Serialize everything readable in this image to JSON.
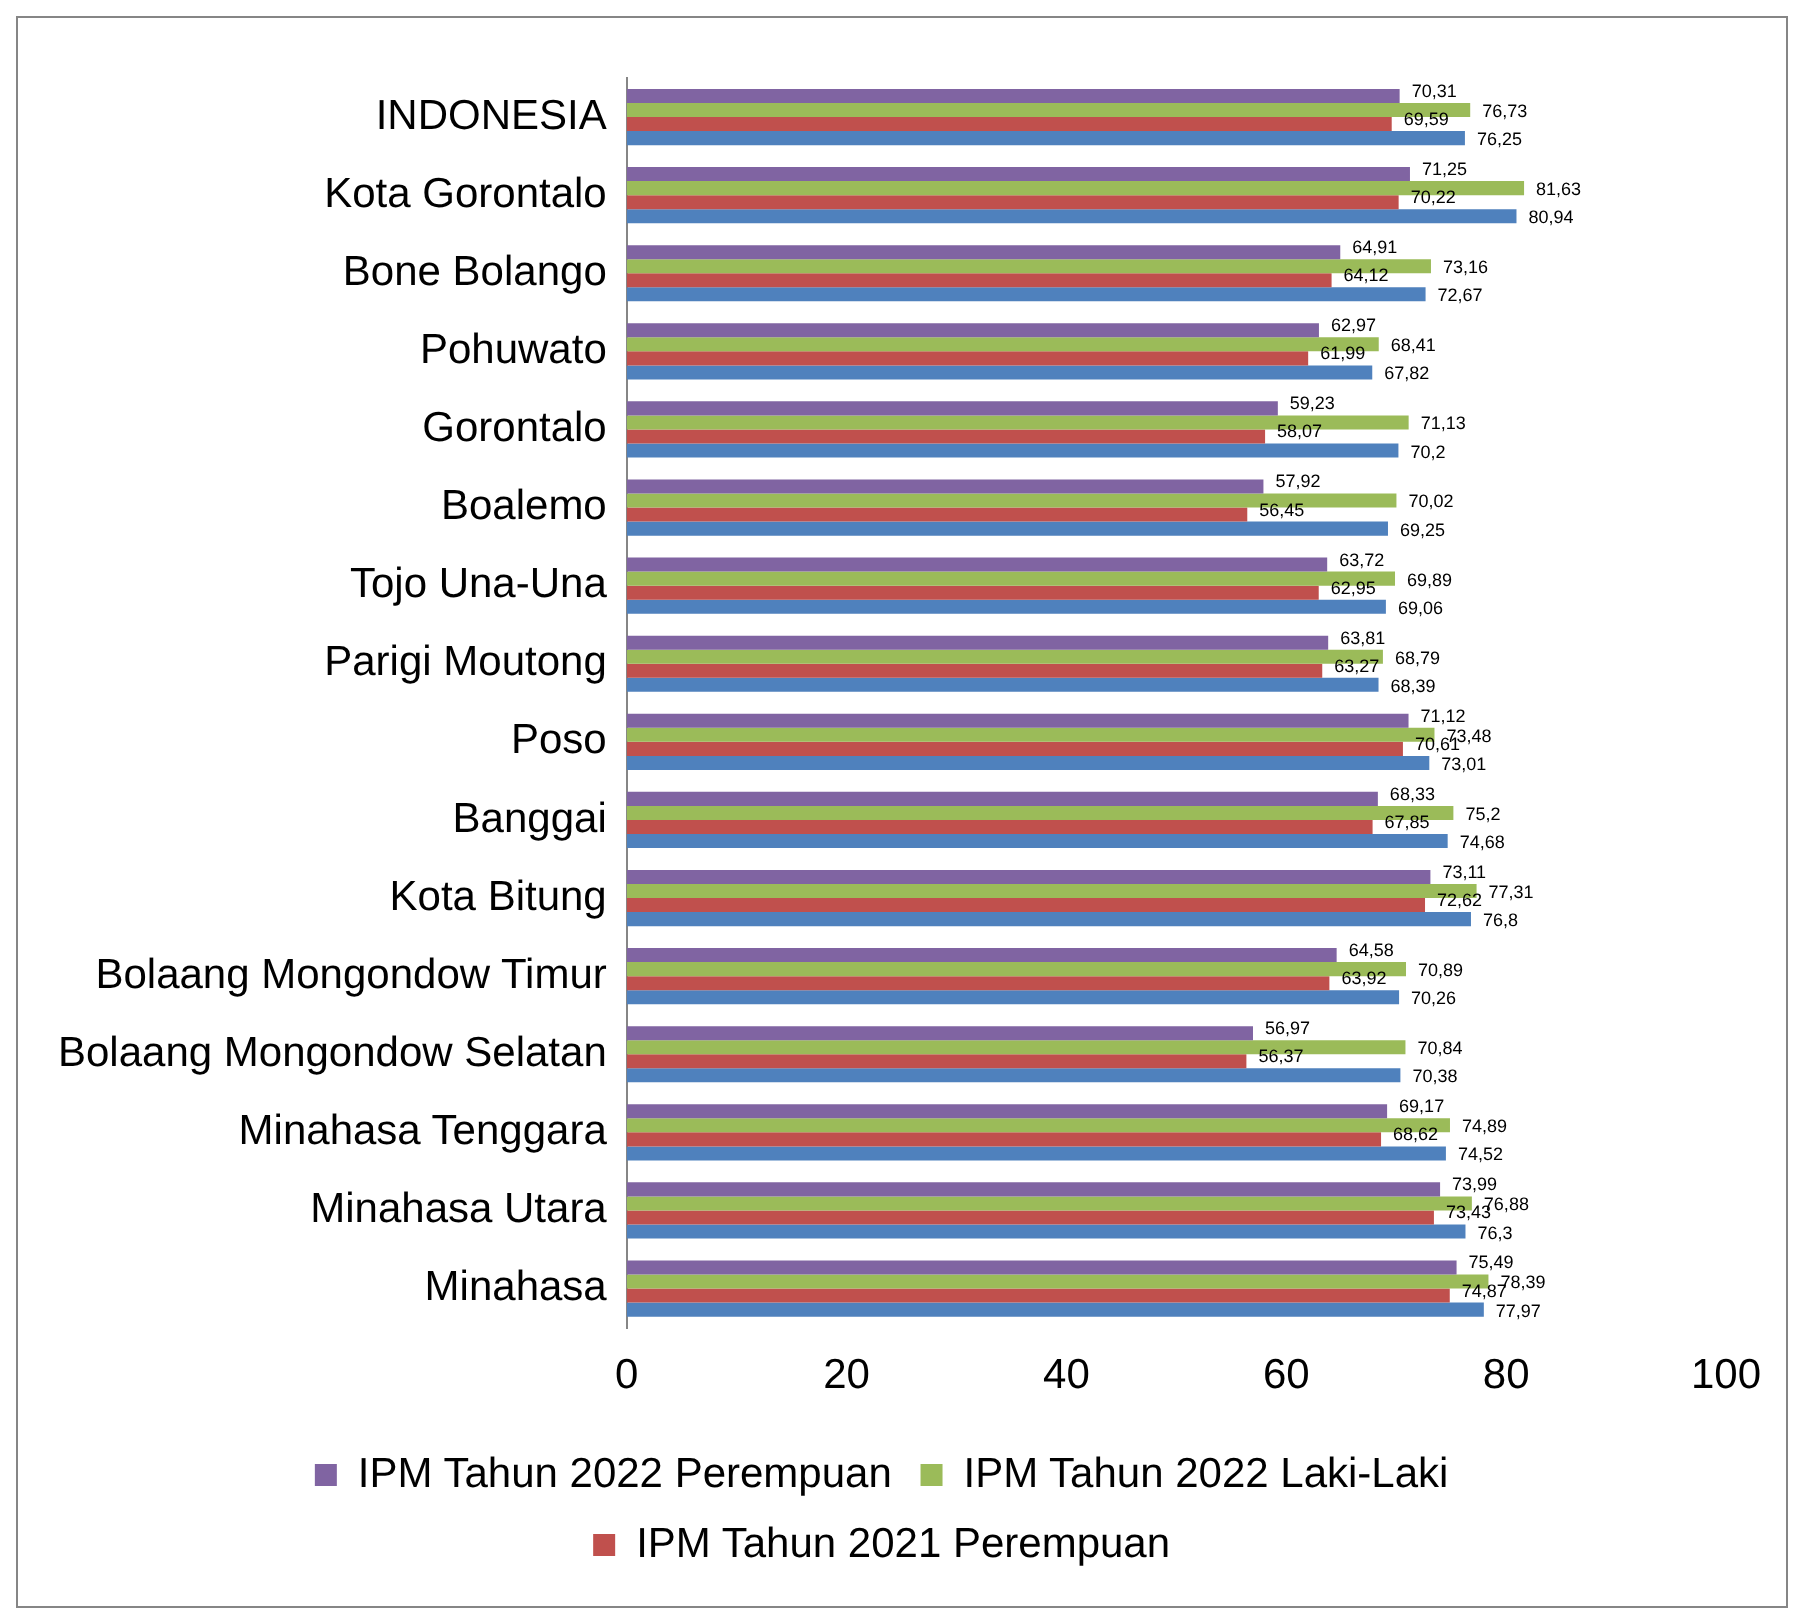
{
  "chart_data": {
    "type": "bar",
    "orientation": "horizontal",
    "categories": [
      "INDONESIA",
      "Kota Gorontalo",
      "Bone Bolango",
      "Pohuwato",
      "Gorontalo",
      "Boalemo",
      "Tojo Una-Una",
      "Parigi Moutong",
      "Poso",
      "Banggai",
      "Kota Bitung",
      "Bolaang Mongondow Timur",
      "Bolaang Mongondow Selatan",
      "Minahasa Tenggara",
      "Minahasa Utara",
      "Minahasa"
    ],
    "series": [
      {
        "name": "IPM Tahun 2022 Perempuan",
        "color": "#8064a2",
        "values": [
          70.31,
          71.25,
          64.91,
          62.97,
          59.23,
          57.92,
          63.72,
          63.81,
          71.12,
          68.33,
          73.11,
          64.58,
          56.97,
          69.17,
          73.99,
          75.49
        ],
        "value_labels": [
          "70,31",
          "71,25",
          "64,91",
          "62,97",
          "59,23",
          "57,92",
          "63,72",
          "63,81",
          "71,12",
          "68,33",
          "73,11",
          "64,58",
          "56,97",
          "69,17",
          "73,99",
          "75,49"
        ]
      },
      {
        "name": "IPM Tahun 2022 Laki-Laki",
        "color": "#9bbb59",
        "values": [
          76.73,
          81.63,
          73.16,
          68.41,
          71.13,
          70.02,
          69.89,
          68.79,
          73.48,
          75.2,
          77.31,
          70.89,
          70.84,
          74.89,
          76.88,
          78.39
        ],
        "value_labels": [
          "76,73",
          "81,63",
          "73,16",
          "68,41",
          "71,13",
          "70,02",
          "69,89",
          "68,79",
          "73,48",
          "75,2",
          "77,31",
          "70,89",
          "70,84",
          "74,89",
          "76,88",
          "78,39"
        ]
      },
      {
        "name": "IPM Tahun 2021 Perempuan",
        "color": "#c0504d",
        "values": [
          69.59,
          70.22,
          64.12,
          61.99,
          58.07,
          56.45,
          62.95,
          63.27,
          70.61,
          67.85,
          72.62,
          63.92,
          56.37,
          68.62,
          73.43,
          74.87
        ],
        "value_labels": [
          "69,59",
          "70,22",
          "64,12",
          "61,99",
          "58,07",
          "56,45",
          "62,95",
          "63,27",
          "70,61",
          "67,85",
          "72,62",
          "63,92",
          "56,37",
          "68,62",
          "73,43",
          "74,87"
        ]
      },
      {
        "color": "#4f81bd",
        "values": [
          76.25,
          80.94,
          72.67,
          67.82,
          70.2,
          69.25,
          69.06,
          68.39,
          73.01,
          74.68,
          76.8,
          70.26,
          70.38,
          74.52,
          76.3,
          77.97
        ],
        "value_labels": [
          "76,25",
          "80,94",
          "72,67",
          "67,82",
          "70,2",
          "69,25",
          "69,06",
          "68,39",
          "73,01",
          "74,68",
          "76,8",
          "70,26",
          "70,38",
          "74,52",
          "76,3",
          "77,97"
        ]
      }
    ],
    "xlim": [
      0,
      100
    ],
    "xticks": [
      0,
      20,
      40,
      60,
      80,
      100
    ],
    "grid": false,
    "legend": "bottom"
  }
}
